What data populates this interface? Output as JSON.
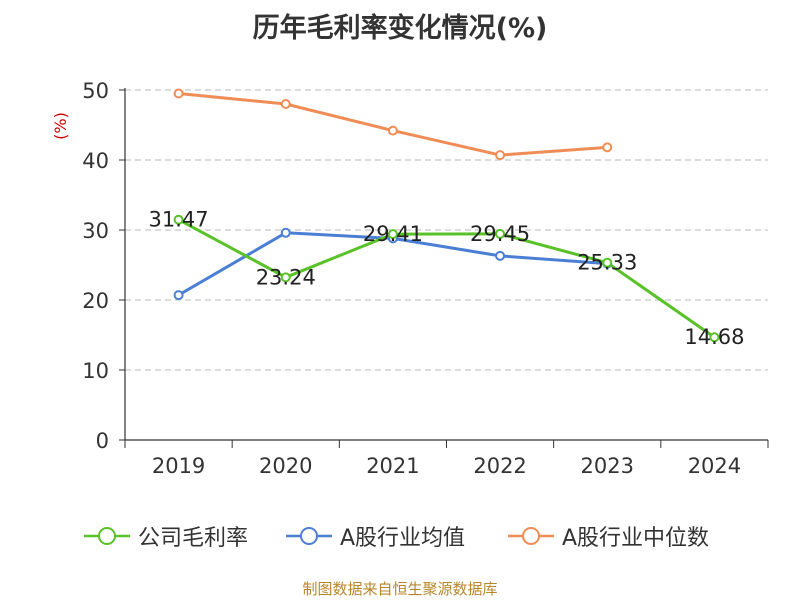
{
  "chart_data": {
    "type": "line",
    "title": "历年毛利率变化情况(%)",
    "ylabel": "(%)",
    "xlabel": "",
    "categories": [
      "2019",
      "2020",
      "2021",
      "2022",
      "2023",
      "2024"
    ],
    "ylim": [
      0,
      50
    ],
    "yticks": [
      0,
      10,
      20,
      30,
      40,
      50
    ],
    "grid": "horizontal dashed",
    "legend_position": "bottom",
    "series": [
      {
        "name": "公司毛利率",
        "color": "#5ac229",
        "values": [
          31.47,
          23.24,
          29.41,
          29.45,
          25.33,
          14.68
        ],
        "labels": [
          "31.47",
          "23.24",
          "29.41",
          "29.45",
          "25.33",
          "14.68"
        ]
      },
      {
        "name": "A股行业均值",
        "color": "#4a7fd4",
        "values": [
          20.7,
          29.6,
          28.8,
          26.3,
          25.2,
          null
        ]
      },
      {
        "name": "A股行业中位数",
        "color": "#f08c55",
        "values": [
          49.5,
          48.0,
          44.2,
          40.7,
          41.8,
          null
        ]
      }
    ]
  },
  "source": "制图数据来自恒生聚源数据库"
}
